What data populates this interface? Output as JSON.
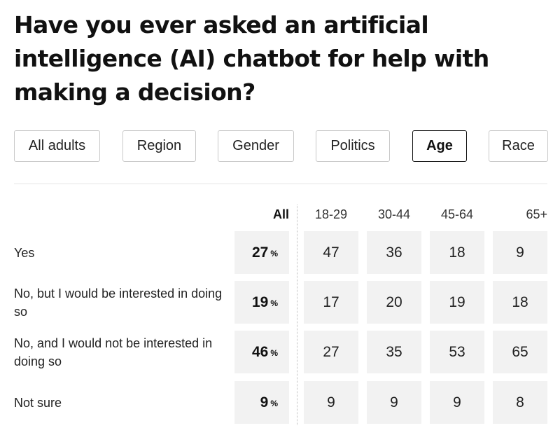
{
  "question": "Have you ever asked an artificial intelligence (AI) chatbot for help with making a decision?",
  "tabs": [
    {
      "label": "All adults",
      "active": false
    },
    {
      "label": "Region",
      "active": false
    },
    {
      "label": "Gender",
      "active": false
    },
    {
      "label": "Politics",
      "active": false
    },
    {
      "label": "Age",
      "active": true
    },
    {
      "label": "Race",
      "active": false
    }
  ],
  "chart_data": {
    "type": "table",
    "columns": [
      "All",
      "18-29",
      "30-44",
      "45-64",
      "65+"
    ],
    "pct_symbol": "%",
    "rows": [
      {
        "label": "Yes",
        "all": 27,
        "values": [
          47,
          36,
          18,
          9
        ]
      },
      {
        "label": "No, but I would be interested in doing so",
        "all": 19,
        "values": [
          17,
          20,
          19,
          18
        ]
      },
      {
        "label": "No, and I would not be interested in doing so",
        "all": 46,
        "values": [
          27,
          35,
          53,
          65
        ]
      },
      {
        "label": "Not sure",
        "all": 9,
        "values": [
          9,
          9,
          9,
          8
        ]
      }
    ]
  }
}
